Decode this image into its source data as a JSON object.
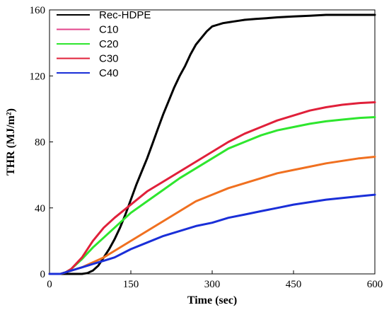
{
  "chart_data": {
    "type": "line",
    "title": "",
    "xlabel": "Time (sec)",
    "ylabel": "THR (MJ/m²)",
    "xlim": [
      0,
      600
    ],
    "ylim": [
      0,
      160
    ],
    "xticks": [
      0,
      150,
      300,
      450,
      600
    ],
    "yticks": [
      0,
      40,
      80,
      120,
      160
    ],
    "grid": false,
    "legend_position": "top-left",
    "series": [
      {
        "name": "Rec-HDPE",
        "color": "#000000",
        "x": [
          0,
          20,
          40,
          60,
          70,
          80,
          90,
          100,
          110,
          120,
          130,
          140,
          150,
          160,
          170,
          180,
          190,
          200,
          210,
          220,
          230,
          240,
          250,
          260,
          270,
          280,
          290,
          300,
          310,
          320,
          330,
          340,
          350,
          360,
          380,
          400,
          420,
          450,
          480,
          510,
          540,
          570,
          600
        ],
        "y": [
          0,
          0,
          0,
          0,
          0.5,
          2,
          5,
          10,
          15,
          21,
          28,
          36,
          45,
          54,
          62,
          70,
          79,
          88,
          97,
          105,
          113,
          120,
          126,
          133,
          139,
          143,
          147,
          150,
          151,
          152,
          152.5,
          153,
          153.5,
          154,
          154.5,
          155,
          155.5,
          156,
          156.5,
          157,
          157,
          157,
          157
        ]
      },
      {
        "name": "C10",
        "color": "#e3448b",
        "x": [],
        "y": []
      },
      {
        "name": "C20",
        "color": "#2ee62e",
        "x": [
          0,
          20,
          30,
          40,
          60,
          80,
          100,
          120,
          150,
          180,
          210,
          240,
          270,
          300,
          330,
          360,
          390,
          420,
          450,
          480,
          510,
          540,
          570,
          600
        ],
        "y": [
          0,
          0,
          1,
          3,
          9,
          16,
          22,
          28,
          37,
          44,
          51,
          58,
          64,
          70,
          76,
          80,
          84,
          87,
          89,
          91,
          92.5,
          93.5,
          94.5,
          95
        ]
      },
      {
        "name": "C30",
        "color": "#e0203a",
        "x": [
          0,
          20,
          30,
          40,
          60,
          80,
          100,
          120,
          150,
          180,
          210,
          240,
          270,
          300,
          330,
          360,
          390,
          420,
          450,
          480,
          510,
          540,
          570,
          600
        ],
        "y": [
          0,
          0,
          1,
          3,
          10,
          20,
          28,
          34,
          42,
          50,
          56,
          62,
          68,
          74,
          80,
          85,
          89,
          93,
          96,
          99,
          101,
          102.5,
          103.5,
          104
        ]
      },
      {
        "name": "",
        "color": "#f07020",
        "x": [
          0,
          20,
          40,
          60,
          80,
          100,
          120,
          150,
          180,
          210,
          240,
          270,
          300,
          330,
          360,
          390,
          420,
          450,
          480,
          510,
          540,
          570,
          600
        ],
        "y": [
          0,
          0,
          2,
          4,
          7,
          10,
          14,
          20,
          26,
          32,
          38,
          44,
          48,
          52,
          55,
          58,
          61,
          63,
          65,
          67,
          68.5,
          70,
          71
        ]
      },
      {
        "name": "C40",
        "color": "#1a2fd8",
        "x": [
          0,
          20,
          40,
          60,
          80,
          100,
          120,
          150,
          180,
          210,
          240,
          270,
          300,
          330,
          360,
          390,
          420,
          450,
          480,
          510,
          540,
          570,
          600
        ],
        "y": [
          0,
          0,
          2,
          4,
          6,
          8,
          10,
          15,
          19,
          23,
          26,
          29,
          31,
          34,
          36,
          38,
          40,
          42,
          43.5,
          45,
          46,
          47,
          48
        ]
      }
    ]
  }
}
